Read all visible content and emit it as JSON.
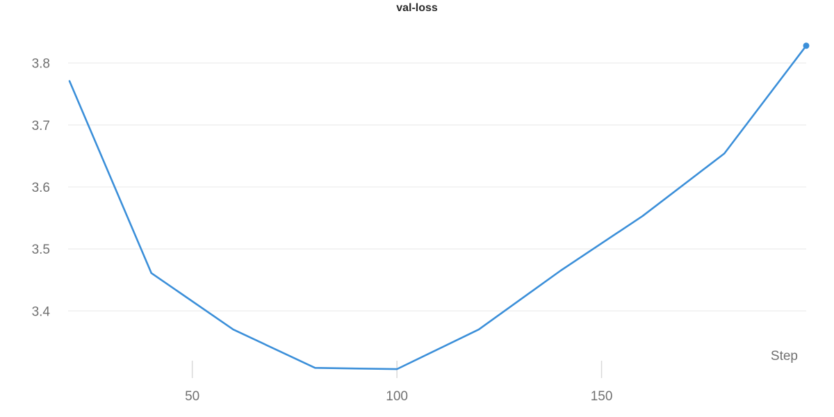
{
  "chart_data": {
    "type": "line",
    "title": "val-loss",
    "xlabel": "Step",
    "ylabel": "",
    "xlim": [
      20,
      200
    ],
    "ylim": [
      3.305,
      3.83
    ],
    "x_ticks": [
      50,
      100,
      150
    ],
    "y_ticks": [
      3.4,
      3.5,
      3.6,
      3.7,
      3.8
    ],
    "grid": "horizontal",
    "series": [
      {
        "color": "#3b8fd9",
        "x": [
          20,
          40,
          60,
          80,
          100,
          120,
          140,
          160,
          180,
          200
        ],
        "y": [
          3.771,
          3.461,
          3.37,
          3.308,
          3.306,
          3.37,
          3.465,
          3.553,
          3.654,
          3.828
        ]
      }
    ]
  }
}
